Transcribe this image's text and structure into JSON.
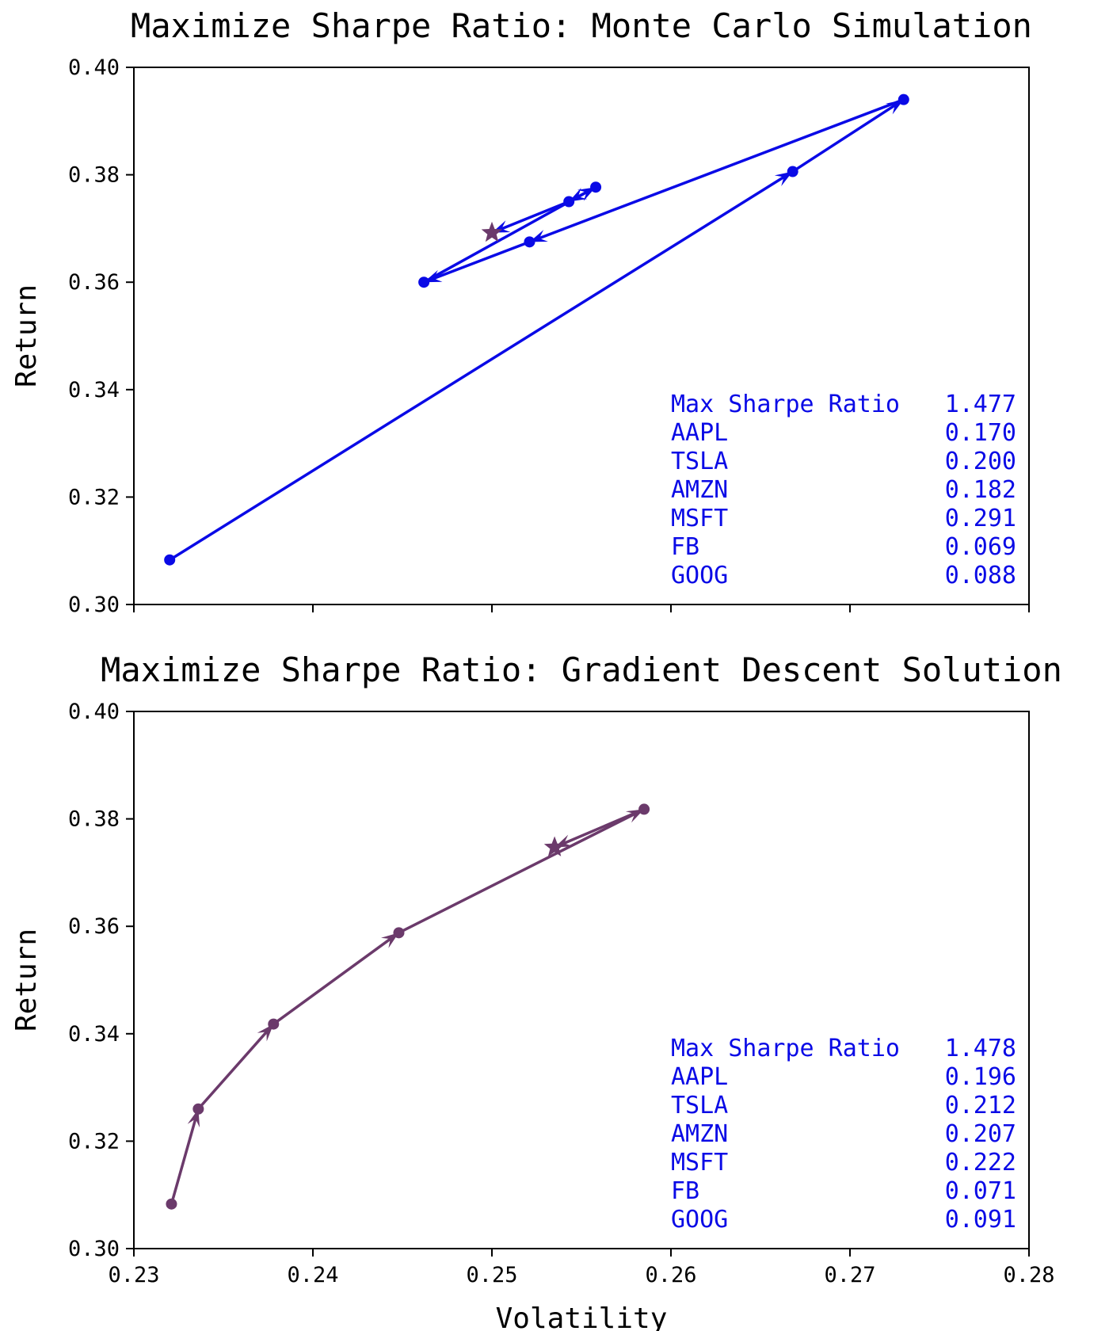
{
  "chart_data": [
    {
      "type": "line",
      "title": "Maximize Sharpe Ratio: Monte Carlo Simulation",
      "xlabel": "",
      "ylabel": "Return",
      "xlim": [
        0.23,
        0.28
      ],
      "ylim": [
        0.3,
        0.4
      ],
      "x_ticks": [
        0.23,
        0.24,
        0.25,
        0.26,
        0.27,
        0.28
      ],
      "x_tick_labels": [
        "",
        "",
        "",
        "",
        "",
        ""
      ],
      "y_ticks": [
        0.3,
        0.32,
        0.34,
        0.36,
        0.38,
        0.4
      ],
      "y_tick_labels": [
        "0.30",
        "0.32",
        "0.34",
        "0.36",
        "0.38",
        "0.40"
      ],
      "grid": false,
      "line_color": "#0a0ae6",
      "star_color": "#6b3a6b",
      "stats_color": "#0a0ae6",
      "path": {
        "x": [
          0.232,
          0.2668,
          0.273,
          0.2521,
          0.2462,
          0.2558,
          0.2543,
          0.25
        ],
        "y": [
          0.3083,
          0.3806,
          0.394,
          0.3675,
          0.36,
          0.3777,
          0.375,
          0.3692
        ]
      },
      "optimum": {
        "x": 0.25,
        "y": 0.3692
      },
      "stats": [
        {
          "label": "Max Sharpe Ratio",
          "value": "1.477"
        },
        {
          "label": "AAPL",
          "value": "0.170"
        },
        {
          "label": "TSLA",
          "value": "0.200"
        },
        {
          "label": "AMZN",
          "value": "0.182"
        },
        {
          "label": "MSFT",
          "value": "0.291"
        },
        {
          "label": "FB",
          "value": "0.069"
        },
        {
          "label": "GOOG",
          "value": "0.088"
        }
      ]
    },
    {
      "type": "line",
      "title": "Maximize Sharpe Ratio: Gradient Descent Solution",
      "xlabel": "Volatility",
      "ylabel": "Return",
      "xlim": [
        0.23,
        0.28
      ],
      "ylim": [
        0.3,
        0.4
      ],
      "x_ticks": [
        0.23,
        0.24,
        0.25,
        0.26,
        0.27,
        0.28
      ],
      "x_tick_labels": [
        "0.23",
        "0.24",
        "0.25",
        "0.26",
        "0.27",
        "0.28"
      ],
      "y_ticks": [
        0.3,
        0.32,
        0.34,
        0.36,
        0.38,
        0.4
      ],
      "y_tick_labels": [
        "0.30",
        "0.32",
        "0.34",
        "0.36",
        "0.38",
        "0.40"
      ],
      "grid": false,
      "line_color": "#6b3a6b",
      "star_color": "#6b3a6b",
      "stats_color": "#0a0ae6",
      "path": {
        "x": [
          0.2321,
          0.2336,
          0.2378,
          0.2448,
          0.2585,
          0.2535
        ],
        "y": [
          0.3083,
          0.326,
          0.3418,
          0.3588,
          0.3818,
          0.3747
        ]
      },
      "optimum": {
        "x": 0.2535,
        "y": 0.3747
      },
      "stats": [
        {
          "label": "Max Sharpe Ratio",
          "value": "1.478"
        },
        {
          "label": "AAPL",
          "value": "0.196"
        },
        {
          "label": "TSLA",
          "value": "0.212"
        },
        {
          "label": "AMZN",
          "value": "0.207"
        },
        {
          "label": "MSFT",
          "value": "0.222"
        },
        {
          "label": "FB",
          "value": "0.071"
        },
        {
          "label": "GOOG",
          "value": "0.091"
        }
      ]
    }
  ]
}
